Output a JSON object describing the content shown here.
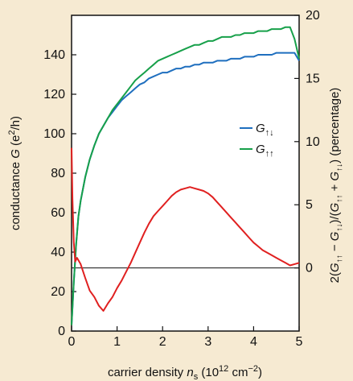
{
  "chart_data": {
    "type": "line",
    "title": "",
    "xlabel": {
      "text": "carrier density ",
      "var": "n",
      "var_sub": "s",
      "unit_open": " (10",
      "unit_exp1": "12",
      "unit_mid": "  cm",
      "unit_exp2": "−2",
      "unit_close": ")"
    },
    "ylabel_left": {
      "text": "conductance ",
      "var": "G",
      "unit_open": " (e",
      "unit_exp": "2",
      "unit_close": "/h)"
    },
    "ylabel_right": {
      "prefix": "2(",
      "g": "G",
      "up_up": "↑↑",
      "up_down": "↑↓",
      "minus": " − ",
      "plus": " + ",
      "slash": ")/(",
      "suffix": ") (percentage)"
    },
    "xlim": [
      0,
      5
    ],
    "xticks": [
      "0",
      "1",
      "2",
      "3",
      "4",
      "5"
    ],
    "ylim_left": [
      0,
      160
    ],
    "yticks_left": [
      "0",
      "20",
      "40",
      "60",
      "80",
      "100",
      "120",
      "140"
    ],
    "ylim_right": [
      -5,
      20
    ],
    "yticks_right": [
      "0",
      "5",
      "10",
      "15",
      "20"
    ],
    "zero_line_right": 0,
    "grid": false,
    "legend_position": "right-middle",
    "legend": [
      {
        "symbol": "G",
        "sub": "↑↓",
        "color": "#1f6fbf"
      },
      {
        "symbol": "G",
        "sub": "↑↑",
        "color": "#17a04a"
      }
    ],
    "series": [
      {
        "name": "G↑↓",
        "axis": "left",
        "color": "#1f6fbf",
        "x": [
          0.0,
          0.05,
          0.1,
          0.15,
          0.2,
          0.3,
          0.4,
          0.5,
          0.6,
          0.7,
          0.8,
          0.9,
          1.0,
          1.1,
          1.2,
          1.3,
          1.4,
          1.5,
          1.6,
          1.7,
          1.8,
          1.9,
          2.0,
          2.1,
          2.2,
          2.3,
          2.4,
          2.5,
          2.6,
          2.7,
          2.8,
          2.9,
          3.0,
          3.1,
          3.2,
          3.3,
          3.4,
          3.5,
          3.6,
          3.7,
          3.8,
          3.9,
          4.0,
          4.1,
          4.2,
          4.3,
          4.4,
          4.5,
          4.6,
          4.7,
          4.8,
          4.9,
          5.0
        ],
        "values": [
          3,
          25,
          44,
          58,
          66,
          78,
          87,
          94,
          100,
          104,
          108,
          111,
          114,
          117,
          119,
          121,
          123,
          125,
          126,
          128,
          129,
          130,
          131,
          131,
          132,
          133,
          133,
          134,
          134,
          135,
          135,
          136,
          136,
          136,
          137,
          137,
          137,
          138,
          138,
          138,
          139,
          139,
          139,
          140,
          140,
          140,
          140,
          141,
          141,
          141,
          141,
          141,
          137
        ]
      },
      {
        "name": "G↑↑",
        "axis": "left",
        "color": "#17a04a",
        "x": [
          0.0,
          0.05,
          0.1,
          0.15,
          0.2,
          0.3,
          0.4,
          0.5,
          0.6,
          0.7,
          0.8,
          0.9,
          1.0,
          1.1,
          1.2,
          1.3,
          1.4,
          1.5,
          1.6,
          1.7,
          1.8,
          1.9,
          2.0,
          2.1,
          2.2,
          2.3,
          2.4,
          2.5,
          2.6,
          2.7,
          2.8,
          2.9,
          3.0,
          3.1,
          3.2,
          3.3,
          3.4,
          3.5,
          3.6,
          3.7,
          3.8,
          3.9,
          4.0,
          4.1,
          4.2,
          4.3,
          4.4,
          4.5,
          4.6,
          4.7,
          4.8,
          4.9,
          5.0
        ],
        "values": [
          3,
          25,
          44,
          58,
          66,
          78,
          87,
          94,
          100,
          104,
          108,
          112,
          115,
          118,
          121,
          124,
          127,
          129,
          131,
          133,
          135,
          137,
          138,
          139,
          140,
          141,
          142,
          143,
          144,
          145,
          145,
          146,
          147,
          147,
          148,
          149,
          149,
          149,
          150,
          150,
          151,
          151,
          151,
          152,
          152,
          152,
          153,
          153,
          153,
          154,
          154,
          148,
          138
        ]
      },
      {
        "name": "2(G↑↑ − G↑↓)/(G↑↑ + G↑↓)",
        "axis": "right",
        "color": "#e02020",
        "x": [
          0.0,
          0.02,
          0.05,
          0.08,
          0.12,
          0.2,
          0.3,
          0.4,
          0.5,
          0.6,
          0.7,
          0.8,
          0.9,
          1.0,
          1.1,
          1.2,
          1.3,
          1.4,
          1.5,
          1.6,
          1.7,
          1.8,
          1.9,
          2.0,
          2.1,
          2.2,
          2.3,
          2.4,
          2.5,
          2.6,
          2.7,
          2.8,
          2.9,
          3.0,
          3.1,
          3.2,
          3.3,
          3.4,
          3.5,
          3.6,
          3.7,
          3.8,
          3.9,
          4.0,
          4.1,
          4.2,
          4.3,
          4.4,
          4.5,
          4.6,
          4.7,
          4.8,
          4.9,
          5.0
        ],
        "values": [
          9.5,
          5.5,
          2.0,
          0.5,
          0.8,
          0.3,
          -0.8,
          -1.8,
          -2.3,
          -3.0,
          -3.4,
          -2.8,
          -2.3,
          -1.6,
          -1.0,
          -0.3,
          0.4,
          1.2,
          2.0,
          2.8,
          3.5,
          4.1,
          4.5,
          4.9,
          5.3,
          5.7,
          6.0,
          6.2,
          6.3,
          6.4,
          6.3,
          6.2,
          6.1,
          5.9,
          5.6,
          5.2,
          4.8,
          4.4,
          4.0,
          3.6,
          3.2,
          2.8,
          2.4,
          2.0,
          1.7,
          1.4,
          1.2,
          1.0,
          0.8,
          0.6,
          0.4,
          0.2,
          0.3,
          0.4
        ]
      }
    ]
  }
}
